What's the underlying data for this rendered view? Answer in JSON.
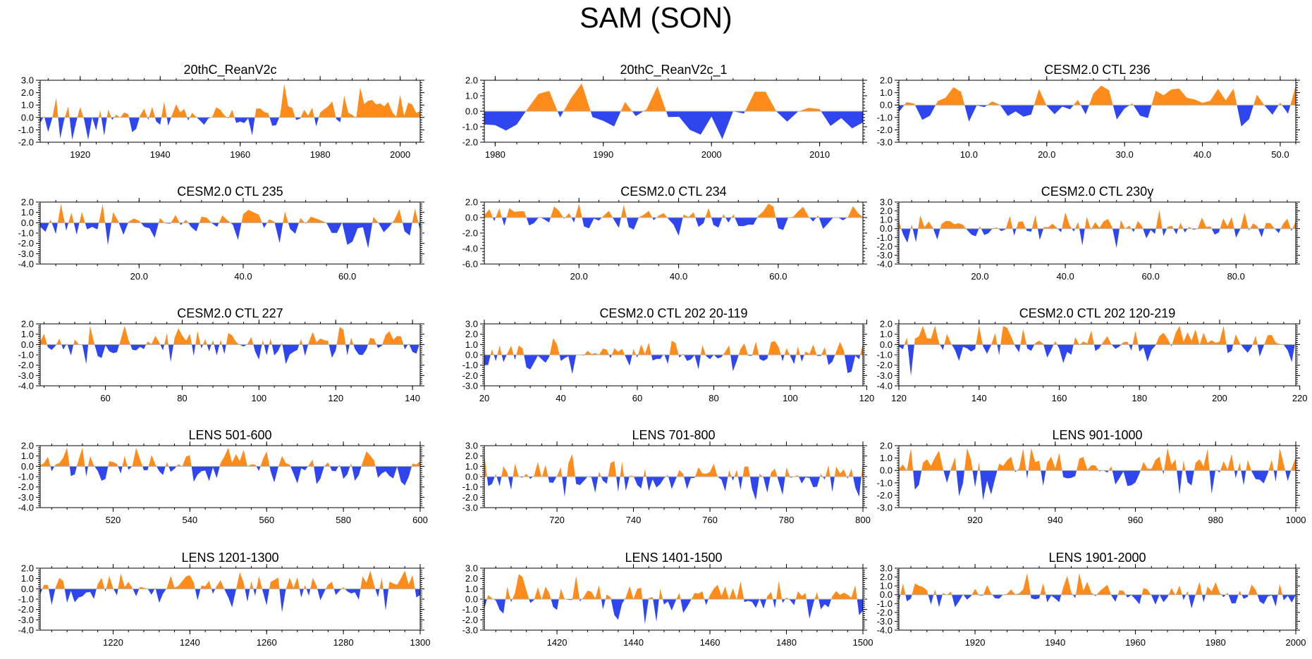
{
  "figure": {
    "title": "SAM (SON)",
    "colors": {
      "positive": "#ff8c1a",
      "negative": "#2f46ee",
      "axis": "#000000",
      "zero_line": "#b0b0b0"
    }
  },
  "chart_data": [
    {
      "type": "area",
      "title": "20thC_ReanV2c",
      "x_start": 1910,
      "x_end": 2005,
      "ylim": [
        -2.0,
        3.0
      ],
      "yticks": [
        "3.0",
        "2.0",
        "1.0",
        "0.0",
        "-1.0",
        "-2.0"
      ],
      "xticks": [
        1920,
        1940,
        1960,
        1980,
        2000
      ],
      "xtick_labels": [
        "1920",
        "1940",
        "1960",
        "1980",
        "2000"
      ],
      "seed": 11,
      "bias": -0.6,
      "bias2": 0.9,
      "amp": 0.8
    },
    {
      "type": "area",
      "title": "20thC_ReanV2c_1",
      "x_start": 1979,
      "x_end": 2014,
      "ylim": [
        -2.0,
        2.0
      ],
      "yticks": [
        "2.0",
        "1.0",
        "0.0",
        "-1.0",
        "-2.0"
      ],
      "xticks": [
        1980,
        1990,
        2000,
        2010
      ],
      "xtick_labels": [
        "1980",
        "1990",
        "2000",
        "2010"
      ],
      "seed": 23,
      "bias": 0,
      "bias2": 0,
      "amp": 0.9
    },
    {
      "type": "area",
      "title": "CESM2.0 CTL 236",
      "x_start": 1,
      "x_end": 52,
      "ylim": [
        -3.0,
        2.0
      ],
      "yticks": [
        "2.0",
        "1.0",
        "0.0",
        "-1.0",
        "-2.0",
        "-3.0"
      ],
      "xticks": [
        10,
        20,
        30,
        40,
        50
      ],
      "xtick_labels": [
        "10.0",
        "20.0",
        "30.0",
        "40.0",
        "50.0"
      ],
      "seed": 37,
      "bias": 0,
      "bias2": 0,
      "amp": 0.9
    },
    {
      "type": "area",
      "title": "CESM2.0 CTL 235",
      "x_start": 1,
      "x_end": 74,
      "ylim": [
        -4.0,
        2.0
      ],
      "yticks": [
        "2.0",
        "1.0",
        "0.0",
        "-1.0",
        "-2.0",
        "-3.0",
        "-4.0"
      ],
      "xticks": [
        20,
        40,
        60
      ],
      "xtick_labels": [
        "20.0",
        "40.0",
        "60.0"
      ],
      "seed": 41,
      "bias": 0,
      "bias2": 0,
      "amp": 0.9
    },
    {
      "type": "area",
      "title": "CESM2.0 CTL 234",
      "x_start": 1,
      "x_end": 77,
      "ylim": [
        -6.0,
        2.0
      ],
      "yticks": [
        "2.0",
        "0.0",
        "-2.0",
        "-4.0",
        "-6.0"
      ],
      "xticks": [
        20,
        40,
        60
      ],
      "xtick_labels": [
        "20.0",
        "40.0",
        "60.0"
      ],
      "seed": 53,
      "bias": 0,
      "bias2": 0,
      "amp": 1.0
    },
    {
      "type": "area",
      "title": "CESM2.0 CTL 230y",
      "x_start": 1,
      "x_end": 94,
      "ylim": [
        -4.0,
        3.0
      ],
      "yticks": [
        "3.0",
        "2.0",
        "1.0",
        "0.0",
        "-1.0",
        "-2.0",
        "-3.0",
        "-4.0"
      ],
      "xticks": [
        20,
        40,
        60,
        80
      ],
      "xtick_labels": [
        "20.0",
        "40.0",
        "60.0",
        "80.0"
      ],
      "seed": 67,
      "bias": 0,
      "bias2": 0,
      "amp": 0.9
    },
    {
      "type": "area",
      "title": "CESM2.0 CTL 227",
      "x_start": 43,
      "x_end": 142,
      "ylim": [
        -4.0,
        2.0
      ],
      "yticks": [
        "2.0",
        "1.0",
        "0.0",
        "-1.0",
        "-2.0",
        "-3.0",
        "-4.0"
      ],
      "xticks": [
        60,
        80,
        100,
        120,
        140
      ],
      "xtick_labels": [
        "60",
        "80",
        "100",
        "120",
        "140"
      ],
      "seed": 71,
      "bias": 0,
      "bias2": 0,
      "amp": 0.9
    },
    {
      "type": "area",
      "title": "CESM2.0 CTL 202 20-119",
      "x_start": 20,
      "x_end": 119,
      "ylim": [
        -3.0,
        3.0
      ],
      "yticks": [
        "3.0",
        "2.0",
        "1.0",
        "0.0",
        "-1.0",
        "-2.0",
        "-3.0"
      ],
      "xticks": [
        20,
        40,
        60,
        80,
        100,
        120
      ],
      "xtick_labels": [
        "20",
        "40",
        "60",
        "80",
        "100",
        "120"
      ],
      "seed": 83,
      "bias": 0,
      "bias2": 0,
      "amp": 0.9
    },
    {
      "type": "area",
      "title": "CESM2.0 CTL 202 120-219",
      "x_start": 120,
      "x_end": 219,
      "ylim": [
        -4.0,
        2.0
      ],
      "yticks": [
        "2.0",
        "1.0",
        "0.0",
        "-1.0",
        "-2.0",
        "-3.0",
        "-4.0"
      ],
      "xticks": [
        120,
        140,
        160,
        180,
        200,
        220
      ],
      "xtick_labels": [
        "120",
        "140",
        "160",
        "180",
        "200",
        "220"
      ],
      "seed": 97,
      "bias": 0,
      "bias2": 0,
      "amp": 0.9
    },
    {
      "type": "area",
      "title": "LENS 501-600",
      "x_start": 501,
      "x_end": 600,
      "ylim": [
        -4.0,
        2.0
      ],
      "yticks": [
        "2.0",
        "1.0",
        "0.0",
        "-1.0",
        "-2.0",
        "-3.0",
        "-4.0"
      ],
      "xticks": [
        520,
        540,
        560,
        580,
        600
      ],
      "xtick_labels": [
        "520",
        "540",
        "560",
        "580",
        "600"
      ],
      "seed": 101,
      "bias": 0,
      "bias2": 0,
      "amp": 0.9
    },
    {
      "type": "area",
      "title": "LENS 701-800",
      "x_start": 701,
      "x_end": 800,
      "ylim": [
        -3.0,
        3.0
      ],
      "yticks": [
        "3.0",
        "2.0",
        "1.0",
        "0.0",
        "-1.0",
        "-2.0",
        "-3.0"
      ],
      "xticks": [
        720,
        740,
        760,
        780,
        800
      ],
      "xtick_labels": [
        "720",
        "740",
        "760",
        "780",
        "800"
      ],
      "seed": 113,
      "bias": 0,
      "bias2": 0,
      "amp": 0.9
    },
    {
      "type": "area",
      "title": "LENS 901-1000",
      "x_start": 901,
      "x_end": 1000,
      "ylim": [
        -3.0,
        2.0
      ],
      "yticks": [
        "2.0",
        "1.0",
        "0.0",
        "-1.0",
        "-2.0",
        "-3.0"
      ],
      "xticks": [
        920,
        940,
        960,
        980,
        1000
      ],
      "xtick_labels": [
        "920",
        "940",
        "960",
        "980",
        "1000"
      ],
      "seed": 127,
      "bias": 0,
      "bias2": 0,
      "amp": 0.9
    },
    {
      "type": "area",
      "title": "LENS 1201-1300",
      "x_start": 1201,
      "x_end": 1300,
      "ylim": [
        -4.0,
        2.0
      ],
      "yticks": [
        "2.0",
        "1.0",
        "0.0",
        "-1.0",
        "-2.0",
        "-3.0",
        "-4.0"
      ],
      "xticks": [
        1220,
        1240,
        1260,
        1280,
        1300
      ],
      "xtick_labels": [
        "1220",
        "1240",
        "1260",
        "1280",
        "1300"
      ],
      "seed": 131,
      "bias": 0,
      "bias2": 0,
      "amp": 0.9
    },
    {
      "type": "area",
      "title": "LENS 1401-1500",
      "x_start": 1401,
      "x_end": 1500,
      "ylim": [
        -3.0,
        3.0
      ],
      "yticks": [
        "3.0",
        "2.0",
        "1.0",
        "0.0",
        "-1.0",
        "-2.0",
        "-3.0"
      ],
      "xticks": [
        1420,
        1440,
        1460,
        1480,
        1500
      ],
      "xtick_labels": [
        "1420",
        "1440",
        "1460",
        "1480",
        "1500"
      ],
      "seed": 149,
      "bias": 0,
      "bias2": 0,
      "amp": 0.9
    },
    {
      "type": "area",
      "title": "LENS 1901-2000",
      "x_start": 1901,
      "x_end": 2000,
      "ylim": [
        -4.0,
        3.0
      ],
      "yticks": [
        "3.0",
        "2.0",
        "1.0",
        "0.0",
        "-1.0",
        "-2.0",
        "-3.0",
        "-4.0"
      ],
      "xticks": [
        1920,
        1940,
        1960,
        1980,
        2000
      ],
      "xtick_labels": [
        "1920",
        "1940",
        "1960",
        "1980",
        "2000"
      ],
      "seed": 151,
      "bias": 0,
      "bias2": 0,
      "amp": 0.9
    }
  ]
}
